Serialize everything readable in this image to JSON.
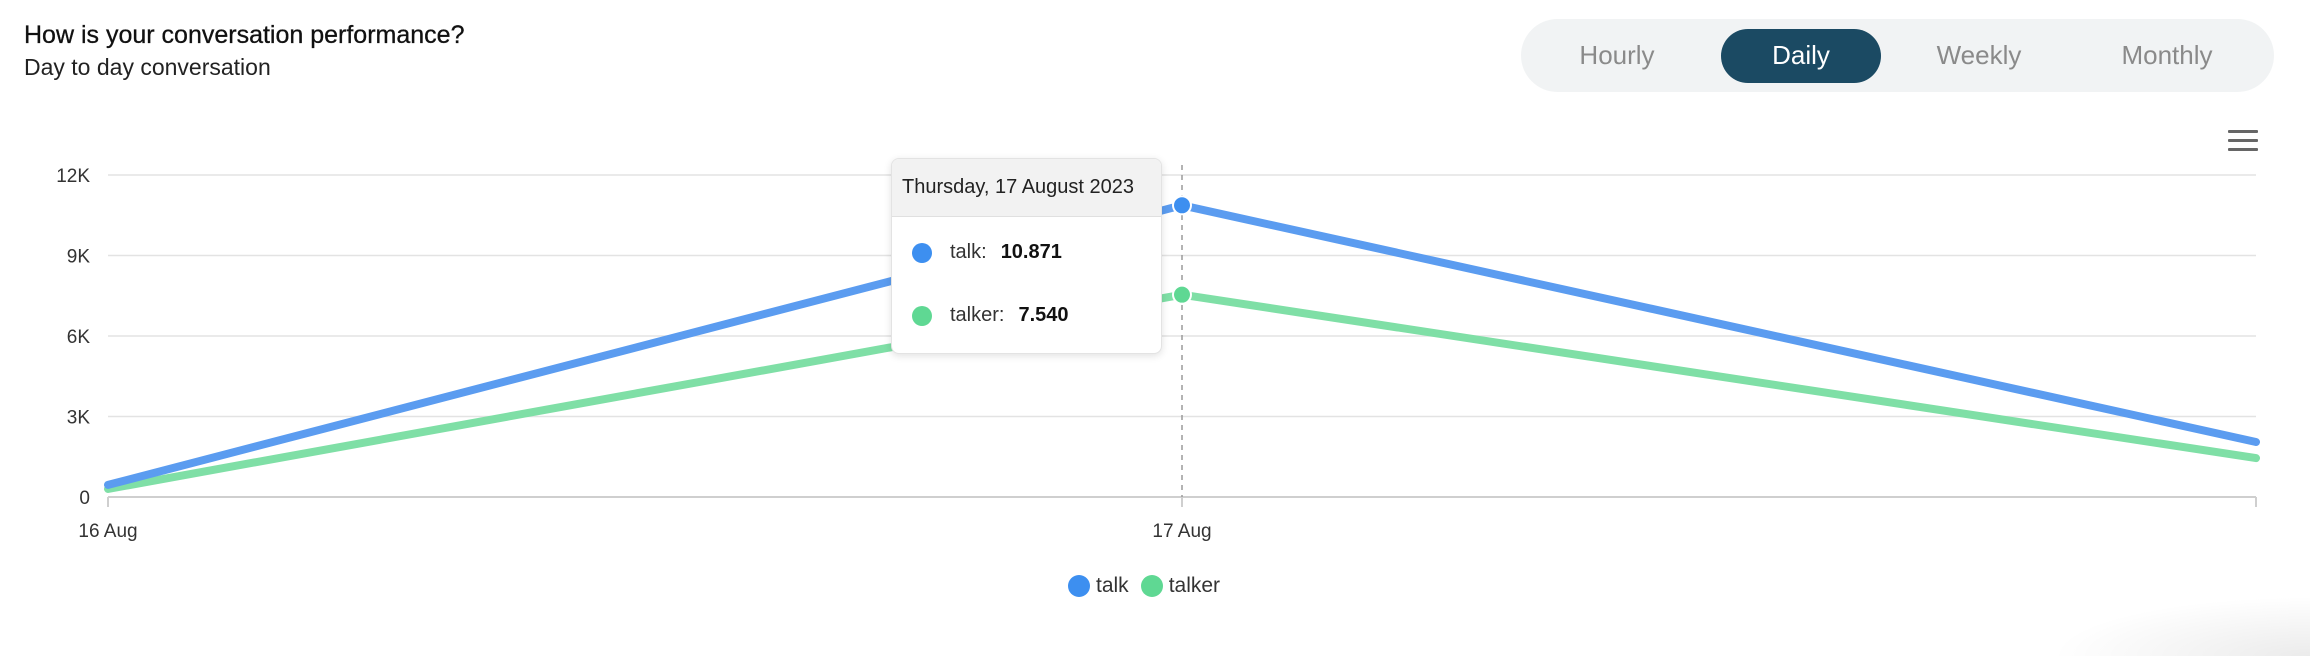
{
  "header": {
    "title": "How is your conversation performance?",
    "subtitle": "Day to day conversation"
  },
  "period_toggle": {
    "options": [
      "Hourly",
      "Daily",
      "Weekly",
      "Monthly"
    ],
    "selected": "Daily"
  },
  "menu": {
    "icon": "hamburger-menu-icon"
  },
  "colors": {
    "talk": "#5b9cf0",
    "talker": "#7fdfa6",
    "talk_marker": "#3d8ff0",
    "talker_marker": "#5fd893",
    "active_tab": "#1b4a63"
  },
  "tooltip": {
    "date": "Thursday, 17 August 2023",
    "rows": [
      {
        "name": "talk",
        "value": "10.871"
      },
      {
        "name": "talker",
        "value": "7.540"
      }
    ]
  },
  "legend": [
    "talk",
    "talker"
  ],
  "chart_data": {
    "type": "line",
    "x": [
      0,
      1,
      2
    ],
    "x_tick_labels": [
      "16 Aug",
      "17 Aug"
    ],
    "series": [
      {
        "name": "talk",
        "values": [
          450,
          10871,
          2050
        ]
      },
      {
        "name": "talker",
        "values": [
          300,
          7540,
          1450
        ]
      }
    ],
    "ylim": [
      0,
      12000
    ],
    "y_ticks": [
      0,
      3000,
      6000,
      9000,
      12000
    ],
    "y_tick_labels": [
      "0",
      "3K",
      "6K",
      "9K",
      "12K"
    ],
    "xlim": [
      0,
      2
    ],
    "grid": true,
    "legend_position": "bottom-center",
    "hover_index": 1
  }
}
